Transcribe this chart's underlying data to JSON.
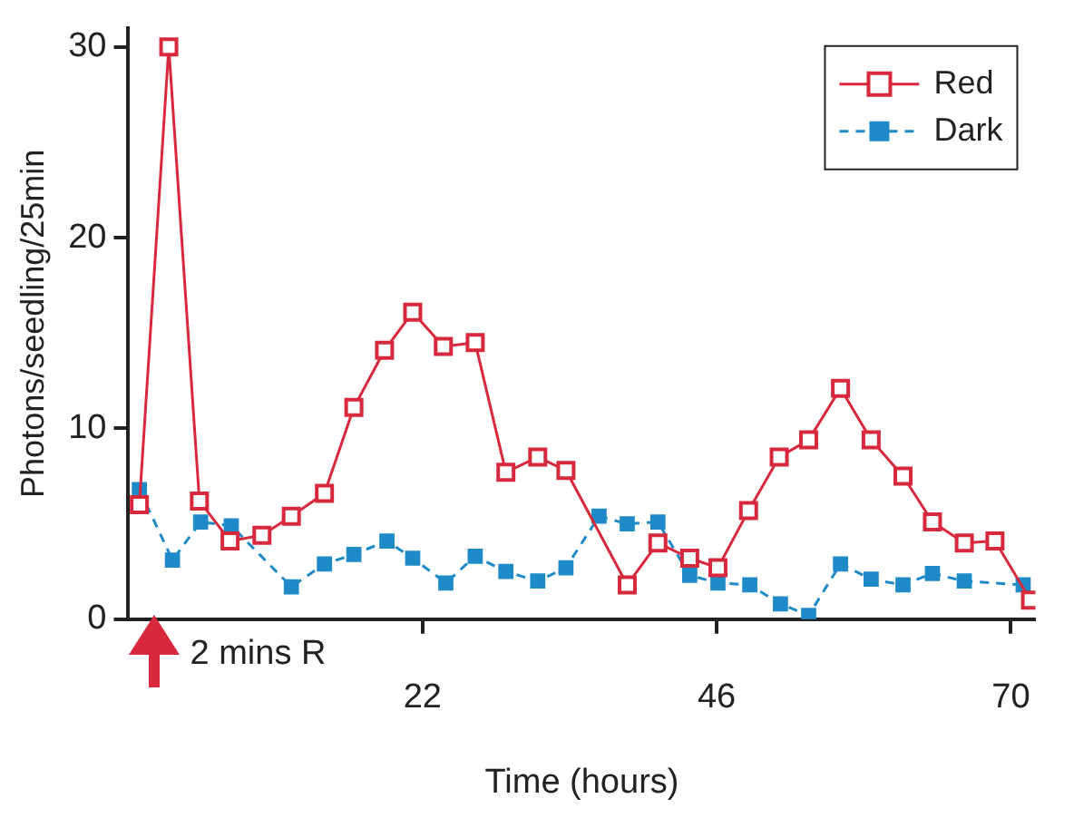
{
  "chart_data": {
    "type": "line",
    "xlabel": "Time (hours)",
    "ylabel": "Photons/seedling/25min",
    "xlim": [
      -2,
      72
    ],
    "xticks": [
      22,
      46,
      70
    ],
    "ylim": [
      0,
      31
    ],
    "yticks": [
      0,
      10,
      20,
      30
    ],
    "grid": false,
    "legend": "top right",
    "annotations": [
      "2 mins R"
    ],
    "series": [
      {
        "name": "Red",
        "color": "#d8283c",
        "marker": "square",
        "line_style": "solid",
        "x": [
          -1.1,
          1.3,
          3.8,
          6.3,
          8.9,
          11.3,
          14.0,
          16.4,
          18.9,
          21.2,
          23.7,
          26.3,
          28.8,
          31.4,
          33.7,
          38.7,
          41.2,
          43.8,
          46.1,
          48.6,
          51.1,
          53.5,
          56.1,
          58.6,
          61.2,
          63.6,
          66.2,
          68.7,
          71.6
        ],
        "values": [
          6,
          30,
          6.2,
          4.1,
          4.4,
          5.4,
          6.6,
          11.1,
          14.1,
          16.1,
          14.3,
          14.5,
          7.7,
          8.5,
          7.8,
          1.8,
          4.0,
          3.2,
          2.7,
          5.7,
          8.5,
          9.4,
          12.1,
          9.4,
          7.5,
          5.1,
          4.0,
          4.1,
          1.0
        ]
      },
      {
        "name": "Dark",
        "color": "#1e8ac8",
        "marker": "square",
        "line_style": "dashed",
        "x": [
          -1.1,
          1.6,
          3.9,
          6.4,
          11.3,
          14.0,
          16.4,
          19.1,
          21.2,
          23.9,
          26.3,
          28.8,
          31.4,
          33.7,
          36.4,
          38.7,
          41.2,
          43.8,
          46.1,
          48.7,
          51.2,
          53.5,
          56.1,
          58.6,
          61.2,
          63.6,
          66.2,
          71.0
        ],
        "values": [
          6.8,
          3.1,
          5.1,
          4.9,
          1.7,
          2.9,
          3.4,
          4.1,
          3.2,
          1.9,
          3.3,
          2.5,
          2.0,
          2.7,
          5.4,
          5.0,
          5.1,
          2.3,
          1.9,
          1.8,
          0.8,
          0.2,
          2.9,
          2.1,
          1.8,
          2.4,
          2.0,
          1.8
        ]
      }
    ]
  }
}
